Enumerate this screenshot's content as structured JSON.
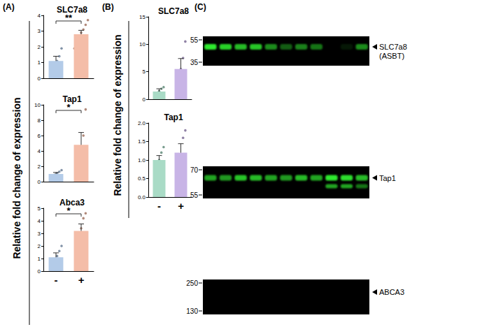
{
  "chart_data": [
    {
      "type": "bar",
      "title": "SLC7a8",
      "categories": [
        "-",
        "+"
      ],
      "values": [
        1.1,
        2.8
      ],
      "errors": [
        0.3,
        0.25
      ],
      "points": [
        [
          0.2,
          0.5,
          0.9,
          1.1,
          1.4,
          1.9
        ],
        [
          1.9,
          2.3,
          2.6,
          2.9,
          3.1,
          3.4,
          3.7
        ]
      ],
      "colors": [
        "#b3cbe8",
        "#f4bda8"
      ],
      "ylim": [
        0,
        4
      ],
      "yticks": [
        0,
        1,
        2,
        3,
        4
      ],
      "grid": false,
      "tick_labels": "y",
      "annotations": [
        "**"
      ]
    },
    {
      "type": "bar",
      "title": "Tap1",
      "categories": [
        "-",
        "+"
      ],
      "values": [
        1.0,
        4.8
      ],
      "errors": [
        0.2,
        1.6
      ],
      "points": [
        [
          0.5,
          0.8,
          0.9,
          1.1,
          1.3,
          1.5
        ],
        [
          1.2,
          2.5,
          3.8,
          6.0,
          9.4
        ]
      ],
      "colors": [
        "#b3cbe8",
        "#f4bda8"
      ],
      "ylim": [
        0,
        10
      ],
      "yticks": [
        0,
        2,
        4,
        6,
        8,
        10
      ],
      "grid": false,
      "tick_labels": "y",
      "annotations": [
        "*"
      ]
    },
    {
      "type": "bar",
      "title": "Abca3",
      "categories": [
        "-",
        "+"
      ],
      "values": [
        1.1,
        3.2
      ],
      "errors": [
        0.35,
        0.55
      ],
      "points": [
        [
          0.4,
          0.6,
          0.9,
          1.2,
          1.6,
          2.0
        ],
        [
          1.9,
          2.7,
          3.4,
          4.2,
          4.6
        ]
      ],
      "colors": [
        "#b3cbe8",
        "#f4bda8"
      ],
      "ylim": [
        0,
        5
      ],
      "yticks": [
        0,
        1,
        2,
        3,
        4,
        5
      ],
      "grid": false,
      "annotations": [
        "*"
      ]
    },
    {
      "type": "bar",
      "title": "SLC7a8",
      "categories": [
        "-",
        "+"
      ],
      "values": [
        1.4,
        5.5
      ],
      "errors": [
        0.5,
        1.9
      ],
      "points": [
        [
          0.5,
          1.0,
          1.5,
          1.9,
          2.2
        ],
        [
          1.5,
          3.5,
          5.5,
          7.5,
          10.5
        ]
      ],
      "colors": [
        "#a9dbc6",
        "#c8b4e6"
      ],
      "ylim": [
        0,
        15
      ],
      "yticks": [
        0,
        5,
        10,
        15
      ],
      "grid": false,
      "tick_labels": "y"
    },
    {
      "type": "bar",
      "title": "Tap1",
      "categories": [
        "-",
        "+"
      ],
      "values": [
        1.0,
        1.2
      ],
      "errors": [
        0.12,
        0.24
      ],
      "points": [
        [
          0.6,
          0.8,
          1.0,
          1.2,
          1.35
        ],
        [
          0.7,
          0.9,
          1.1,
          1.6,
          1.8
        ]
      ],
      "colors": [
        "#a9dbc6",
        "#c8b4e6"
      ],
      "ylim": [
        0,
        2
      ],
      "yticks": [
        {
          "value": 0,
          "label": "0.0"
        },
        {
          "value": 0.5,
          "label": "0.5"
        },
        {
          "value": 1,
          "label": "1.0"
        },
        {
          "value": 1.5,
          "label": "1.5"
        },
        {
          "value": 2,
          "label": "2.0"
        }
      ],
      "grid": false
    }
  ],
  "panels": [
    {
      "label": "(A)",
      "y_label": "Relative fold change of expression"
    },
    {
      "label": "(B)",
      "y_label": "Relative fold change of expression"
    },
    {
      "label": "(C)"
    }
  ],
  "blots": [
    {
      "label": "SLC7a8",
      "sublabel": "(ASBT)",
      "markers": [
        55,
        35
      ],
      "color": "#2ee82e",
      "bands": [
        1,
        0.9,
        0.8,
        0.85,
        0.6,
        0.4,
        0.55,
        0.5,
        0,
        0.1,
        0.6
      ]
    },
    {
      "label": "Tap1",
      "markers": [
        70,
        55
      ],
      "color": "#2ee82e",
      "bands": [
        0.7,
        0.65,
        0.85,
        0.8,
        0.7,
        0.65,
        0.8,
        0.7,
        1,
        0.95,
        0.8
      ],
      "lower_bands": [
        0,
        0,
        0,
        0,
        0,
        0,
        0,
        0,
        0.7,
        0.7,
        0.5
      ]
    },
    {
      "label": "ABCA3",
      "markers": [
        250,
        130
      ],
      "color": "#2ee82e",
      "bands": [
        0,
        0,
        0,
        0,
        0,
        0,
        0,
        0,
        0,
        0,
        0
      ]
    }
  ]
}
